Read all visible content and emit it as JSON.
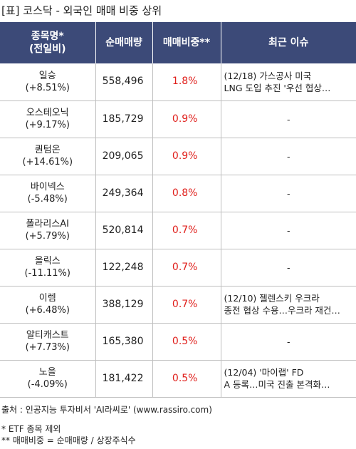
{
  "title": "[표] 코스닥 - 외국인 매매 비중 상위",
  "columns": {
    "name_line1": "종목명*",
    "name_line2": "(전일비)",
    "net_volume": "순매매량",
    "ratio": "매매비중**",
    "issue": "최근 이슈"
  },
  "rows": [
    {
      "name": "일승",
      "change": "(+8.51%)",
      "volume": "558,496",
      "ratio": "1.8%",
      "issue_line1": "(12/18) 가스공사 미국",
      "issue_line2": "LNG 도입 추진 '우선 협상…"
    },
    {
      "name": "오스테오닉",
      "change": "(+9.17%)",
      "volume": "185,729",
      "ratio": "0.9%",
      "issue_line1": "-",
      "issue_line2": ""
    },
    {
      "name": "퀀텀온",
      "change": "(+14.61%)",
      "volume": "209,065",
      "ratio": "0.9%",
      "issue_line1": "-",
      "issue_line2": ""
    },
    {
      "name": "바이넥스",
      "change": "(-5.48%)",
      "volume": "249,364",
      "ratio": "0.8%",
      "issue_line1": "-",
      "issue_line2": ""
    },
    {
      "name": "폴라리스AI",
      "change": "(+5.79%)",
      "volume": "520,814",
      "ratio": "0.7%",
      "issue_line1": "-",
      "issue_line2": ""
    },
    {
      "name": "올릭스",
      "change": "(-11.11%)",
      "volume": "122,248",
      "ratio": "0.7%",
      "issue_line1": "-",
      "issue_line2": ""
    },
    {
      "name": "이렘",
      "change": "(+6.48%)",
      "volume": "388,129",
      "ratio": "0.7%",
      "issue_line1": "(12/10) 젤렌스키 우크라",
      "issue_line2": " 종전 협상 수용…우크라 재건…"
    },
    {
      "name": "알티캐스트",
      "change": "(+7.73%)",
      "volume": "165,380",
      "ratio": "0.5%",
      "issue_line1": "-",
      "issue_line2": ""
    },
    {
      "name": "노을",
      "change": "(-4.09%)",
      "volume": "181,422",
      "ratio": "0.5%",
      "issue_line1": "(12/04) '마이랩' FD",
      "issue_line2": "A 등록…미국 진출 본격화…"
    }
  ],
  "source": "출처 : 인공지능 투자비서 'AI라씨로' (www.rassiro.com)",
  "note1": "* ETF 종목 제외",
  "note2": "** 매매비중 = 순매매량 / 상장주식수"
}
